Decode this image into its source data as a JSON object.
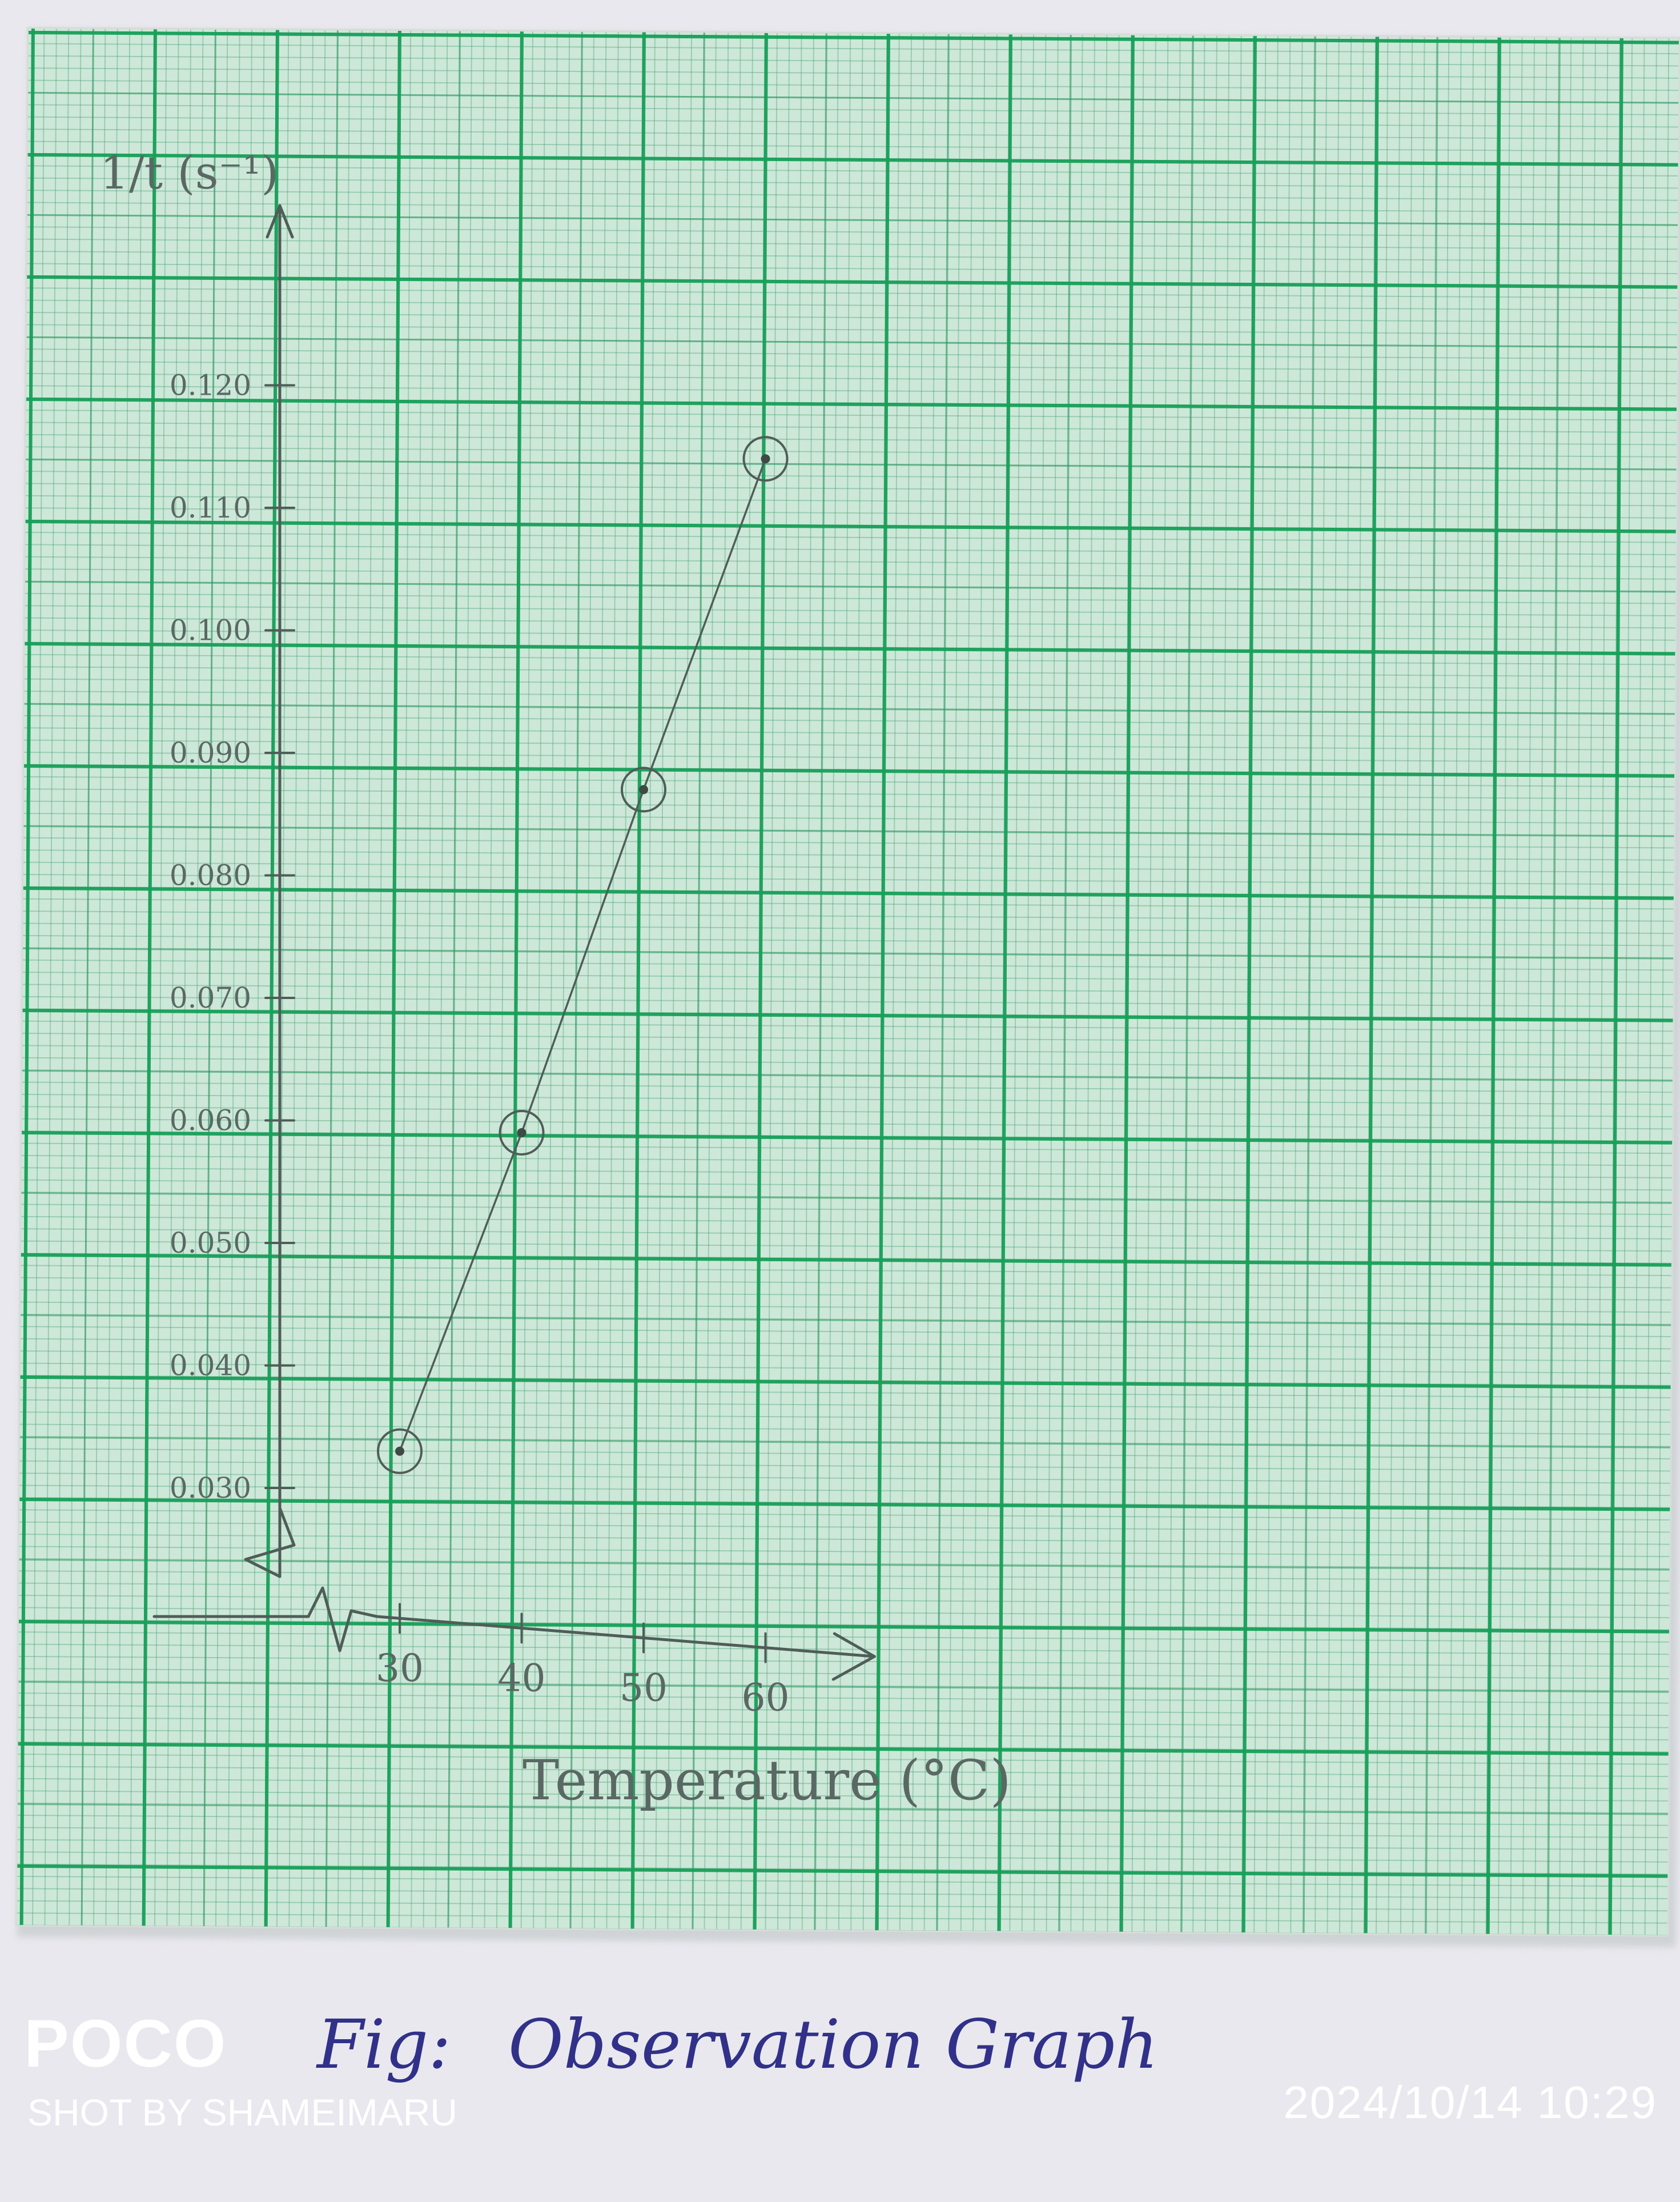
{
  "chart_data": {
    "type": "line",
    "ylabel": "1/t (s⁻¹)",
    "xlabel": "Temperature (°C)",
    "x": [
      30,
      40,
      50,
      60
    ],
    "y": [
      0.033,
      0.059,
      0.087,
      0.114
    ],
    "x_ticks": [
      30,
      40,
      50,
      60
    ],
    "x_tick_labels": [
      "30",
      "40",
      "50",
      "60"
    ],
    "y_ticks": [
      0.03,
      0.04,
      0.05,
      0.06,
      0.07,
      0.08,
      0.09,
      0.1,
      0.11,
      0.12
    ],
    "y_tick_labels": [
      "0.030",
      "0.040",
      "0.050",
      "0.060",
      "0.070",
      "0.080",
      "0.090",
      "0.100",
      "0.110",
      "0.120"
    ],
    "xlim": [
      25,
      68
    ],
    "ylim": [
      0.021,
      0.13
    ],
    "grid": true,
    "axis_breaks": true
  },
  "caption": {
    "prefix": "Fig:",
    "text": "Observation Graph"
  },
  "watermark": {
    "brand": "POCO",
    "credit": "SHOT BY SHAMEIMARU",
    "timestamp": "2024/10/14 10:29"
  },
  "colors": {
    "paper": "#cde8d8",
    "grid": "#18a05a",
    "pencil": "#4f5d58",
    "ink": "#31318a",
    "watermark": "#ffffff"
  }
}
